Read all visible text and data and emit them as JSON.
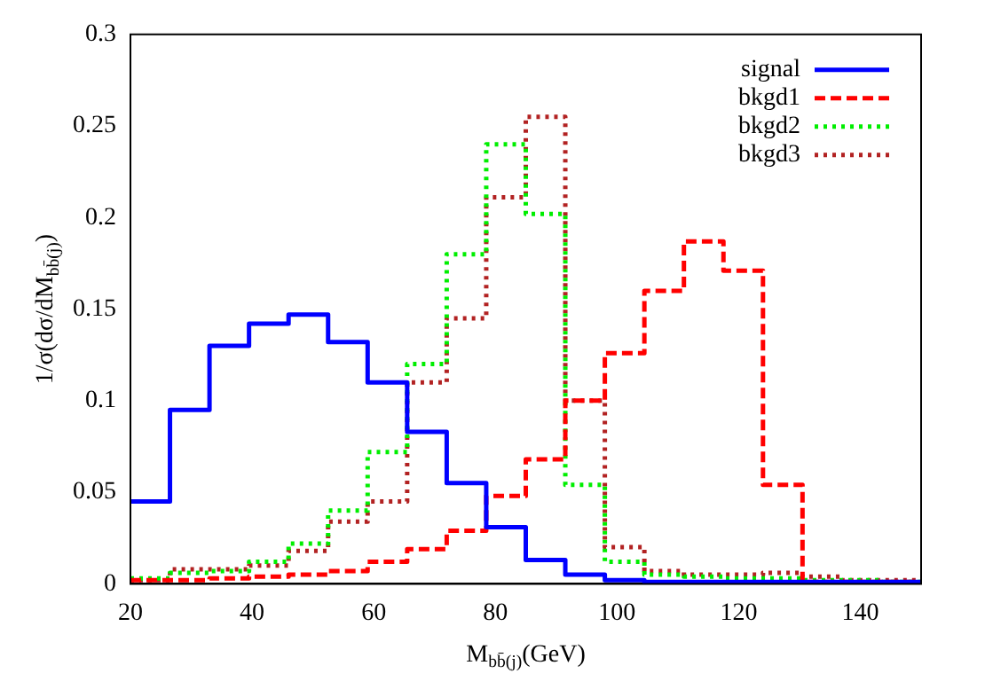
{
  "chart_data": {
    "type": "histogram",
    "xlabel": "M$_{bb̄(j)}$(GeV)",
    "ylabel": "1/σ(dσ/dM$_{bb̄(j)}$)",
    "bins": [
      20,
      26.5,
      33,
      39.5,
      46,
      52.5,
      59,
      65.5,
      72,
      78.5,
      85,
      91.5,
      98,
      104.5,
      111,
      117.5,
      124,
      130.5,
      137,
      143.5,
      150
    ],
    "series": [
      {
        "name": "signal",
        "color": "#0000ff",
        "line_style": "solid",
        "values": [
          0.045,
          0.095,
          0.13,
          0.142,
          0.147,
          0.132,
          0.11,
          0.083,
          0.055,
          0.031,
          0.013,
          0.005,
          0.002,
          0.001,
          0.001,
          0.001,
          0.001,
          0.001,
          0.001,
          0.001
        ]
      },
      {
        "name": "bkgd1",
        "color": "#ff0000",
        "line_style": "dashed",
        "values": [
          0.002,
          0.002,
          0.003,
          0.004,
          0.005,
          0.007,
          0.012,
          0.019,
          0.029,
          0.048,
          0.068,
          0.1,
          0.126,
          0.16,
          0.187,
          0.171,
          0.054,
          0.001,
          0.001,
          0.001
        ]
      },
      {
        "name": "bkgd2",
        "color": "#00ee00",
        "line_style": "dotted",
        "values": [
          0.003,
          0.006,
          0.007,
          0.012,
          0.022,
          0.04,
          0.072,
          0.12,
          0.18,
          0.24,
          0.202,
          0.054,
          0.012,
          0.005,
          0.004,
          0.003,
          0.003,
          0.002,
          0.002,
          0.001
        ]
      },
      {
        "name": "bkgd3",
        "color": "#b22222",
        "line_style": "dotted",
        "values": [
          0.002,
          0.008,
          0.008,
          0.01,
          0.018,
          0.034,
          0.045,
          0.11,
          0.145,
          0.211,
          0.255,
          0.1,
          0.02,
          0.007,
          0.005,
          0.005,
          0.006,
          0.004,
          0.002,
          0.002
        ]
      }
    ],
    "xlim": [
      20,
      150
    ],
    "xticks": [
      20,
      40,
      60,
      80,
      100,
      120,
      140
    ],
    "ylim": [
      0,
      0.3
    ],
    "yticks": [
      0,
      0.05,
      0.1,
      0.15,
      0.2,
      0.25,
      0.3
    ],
    "grid": false,
    "legend": "top right"
  }
}
